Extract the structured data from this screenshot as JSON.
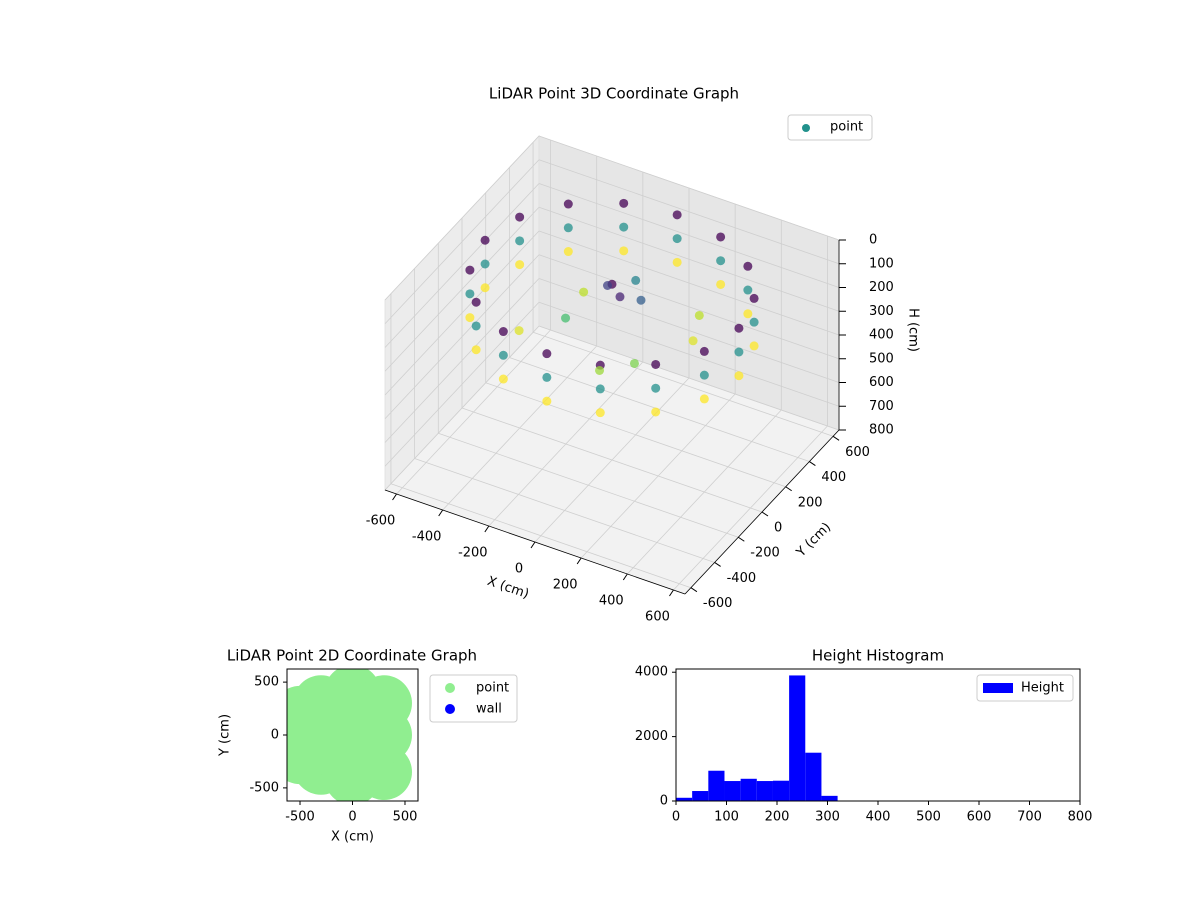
{
  "chart_data": [
    {
      "type": "scatter3d",
      "title": "LiDAR Point 3D Coordinate Graph",
      "xlabel": "X (cm)",
      "ylabel": "Y (cm)",
      "zlabel": "H (cm)",
      "xlim": [
        -650,
        650
      ],
      "ylim": [
        -650,
        650
      ],
      "zlim": [
        0,
        800
      ],
      "z_inverted": true,
      "xticks": [
        -600,
        -400,
        -200,
        0,
        200,
        400,
        600
      ],
      "yticks": [
        -600,
        -400,
        -200,
        0,
        200,
        400,
        600
      ],
      "zticks": [
        0,
        100,
        200,
        300,
        400,
        500,
        600,
        700,
        800
      ],
      "grid": true,
      "legend": "upper right",
      "colormap": "viridis",
      "series": [
        {
          "name": "point",
          "color": "#21918c",
          "x": [
            550,
            508,
            389,
            210,
            0,
            -210,
            -389,
            -508,
            -550,
            -508,
            -389,
            -210,
            0,
            210,
            389,
            508,
            550,
            508,
            389,
            210,
            0,
            -210,
            -389,
            -508,
            -550,
            -508,
            -389,
            -210,
            0,
            210,
            389,
            508,
            550,
            508,
            389,
            210,
            0,
            -210,
            -389,
            -508,
            -550,
            -508,
            -389,
            -210,
            0,
            210,
            389,
            508,
            0,
            50,
            -40,
            100,
            -150,
            200,
            -200,
            300,
            100,
            -300,
            250,
            0
          ],
          "y": [
            0,
            210,
            389,
            508,
            550,
            508,
            389,
            210,
            0,
            -210,
            -389,
            -508,
            -550,
            -508,
            -389,
            -210,
            0,
            210,
            389,
            508,
            550,
            508,
            389,
            210,
            0,
            -210,
            -389,
            -508,
            -550,
            -508,
            -389,
            -210,
            0,
            210,
            389,
            508,
            550,
            508,
            389,
            210,
            0,
            -210,
            -389,
            -508,
            -550,
            -508,
            -389,
            -210,
            0,
            -30,
            40,
            50,
            -100,
            -200,
            150,
            100,
            -300,
            -200,
            250,
            200
          ],
          "h": [
            60,
            60,
            60,
            60,
            60,
            60,
            60,
            60,
            60,
            60,
            60,
            60,
            60,
            60,
            60,
            60,
            160,
            160,
            160,
            160,
            160,
            160,
            160,
            160,
            160,
            160,
            160,
            160,
            160,
            160,
            160,
            160,
            260,
            260,
            260,
            260,
            260,
            260,
            260,
            260,
            260,
            260,
            260,
            260,
            260,
            260,
            260,
            260,
            60,
            80,
            100,
            120,
            200,
            220,
            240,
            250,
            230,
            250,
            240,
            150
          ]
        }
      ]
    },
    {
      "type": "scatter",
      "title": "LiDAR Point 2D Coordinate Graph",
      "xlabel": "X (cm)",
      "ylabel": "Y (cm)",
      "xlim": [
        -624,
        624
      ],
      "ylim": [
        -624,
        624
      ],
      "xticks": [
        -500,
        0,
        500
      ],
      "yticks": [
        -500,
        0,
        500
      ],
      "legend": "outside right",
      "series": [
        {
          "name": "point",
          "color": "lightgreen",
          "x": [
            -300,
            0,
            300,
            -400,
            0,
            300,
            -300,
            0,
            300,
            -500,
            -500,
            150,
            -150,
            150,
            -150
          ],
          "y": [
            300,
            400,
            300,
            0,
            0,
            0,
            -300,
            -400,
            -350,
            200,
            -200,
            150,
            150,
            -150,
            -150
          ]
        },
        {
          "name": "wall",
          "color": "blue",
          "x": [],
          "y": []
        }
      ]
    },
    {
      "type": "histogram",
      "title": "Height Histogram",
      "xlim": [
        0,
        800
      ],
      "ylim": [
        0,
        4100
      ],
      "xticks": [
        0,
        100,
        200,
        300,
        400,
        500,
        600,
        700,
        800
      ],
      "yticks": [
        0,
        2000,
        4000
      ],
      "legend": "upper right",
      "series": [
        {
          "name": "Height",
          "color": "blue",
          "bins": [
            0,
            32,
            64,
            96,
            128,
            160,
            192,
            224,
            256,
            288,
            320
          ],
          "values": [
            100,
            310,
            940,
            620,
            690,
            620,
            630,
            3900,
            1500,
            160
          ]
        }
      ]
    }
  ]
}
